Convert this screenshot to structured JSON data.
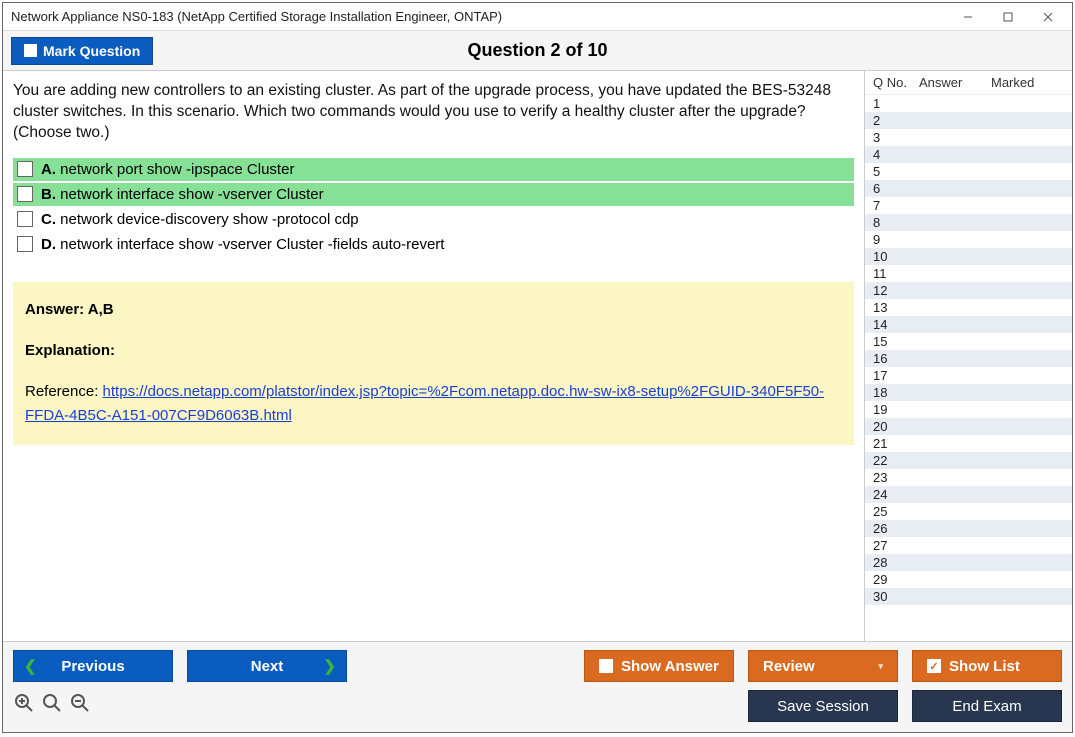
{
  "window": {
    "title": "Network Appliance NS0-183 (NetApp Certified Storage Installation Engineer, ONTAP)"
  },
  "toolbar": {
    "mark_label": "Mark Question",
    "counter": "Question 2 of 10"
  },
  "question": {
    "text": "You are adding new controllers to an existing cluster. As part of the upgrade process, you have updated the BES-53248 cluster switches. In this scenario. Which two commands would you use to verify a healthy cluster after the upgrade? (Choose two.)",
    "options": [
      {
        "letter": "A.",
        "text": "network port show -ipspace Cluster",
        "correct": true
      },
      {
        "letter": "B.",
        "text": "network interface show -vserver Cluster",
        "correct": true
      },
      {
        "letter": "C.",
        "text": "network device-discovery show -protocol cdp",
        "correct": false
      },
      {
        "letter": "D.",
        "text": "network interface show -vserver Cluster -fields auto-revert",
        "correct": false
      }
    ],
    "answer_label": "Answer: A,B",
    "explanation_label": "Explanation:",
    "reference_prefix": "Reference: ",
    "reference_url": "https://docs.netapp.com/platstor/index.jsp?topic=%2Fcom.netapp.doc.hw-sw-ix8-setup%2FGUID-340F5F50-FFDA-4B5C-A151-007CF9D6063B.html"
  },
  "side": {
    "col_qno": "Q No.",
    "col_answer": "Answer",
    "col_marked": "Marked",
    "total_rows": 30
  },
  "buttons": {
    "previous": "Previous",
    "next": "Next",
    "show_answer": "Show Answer",
    "review": "Review",
    "show_list": "Show List",
    "save_session": "Save Session",
    "end_exam": "End Exam"
  },
  "colors": {
    "primary_blue": "#0b5cbf",
    "orange": "#d96a1f",
    "dark": "#28374f",
    "correct_green": "#86e197",
    "answer_bg": "#fbf6c3",
    "link": "#1a3fd4",
    "chevron_green": "#3fb23f"
  }
}
